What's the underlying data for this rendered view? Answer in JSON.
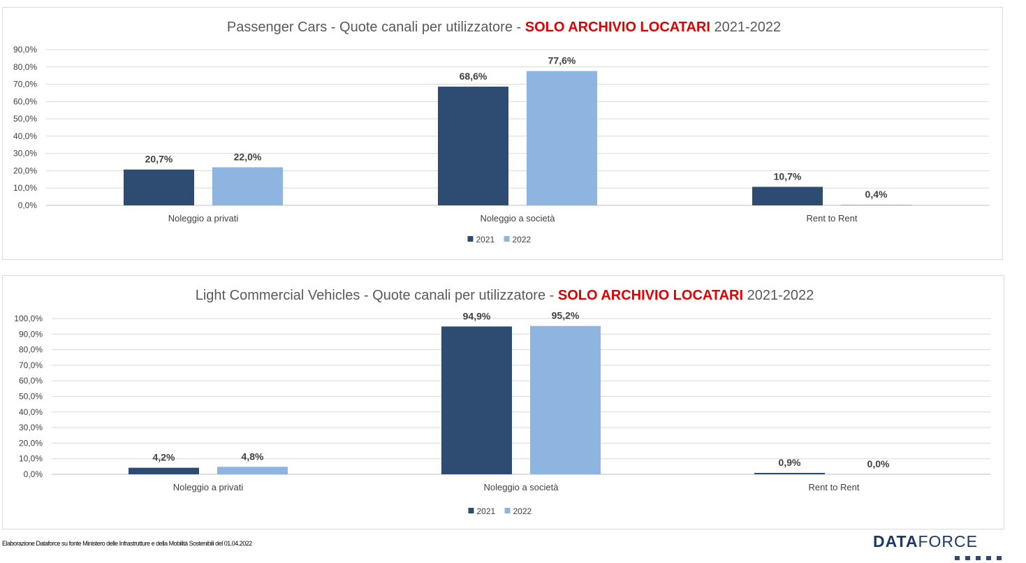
{
  "chart_data": [
    {
      "type": "bar",
      "title": "Passenger Cars - Quote canali per utilizzatore - ",
      "title_highlight": "SOLO ARCHIVIO LOCATARI",
      "title_suffix": " 2021-2022",
      "categories": [
        "Noleggio a privati",
        "Noleggio a società",
        "Rent to Rent"
      ],
      "series": [
        {
          "name": "2021",
          "values": [
            20.7,
            68.6,
            10.7
          ],
          "labels": [
            "20,7%",
            "68,6%",
            "10,7%"
          ],
          "color": "#2e4b72"
        },
        {
          "name": "2022",
          "values": [
            22.0,
            77.6,
            0.4
          ],
          "labels": [
            "22,0%",
            "77,6%",
            "0,4%"
          ],
          "color": "#8eb4e0"
        }
      ],
      "ylim": [
        0,
        90
      ],
      "yticks": [
        "0,0%",
        "10,0%",
        "20,0%",
        "30,0%",
        "40,0%",
        "50,0%",
        "60,0%",
        "70,0%",
        "80,0%",
        "90,0%"
      ],
      "grid": true,
      "legend": "bottom-center",
      "title_highlight_color": "#e00000"
    },
    {
      "type": "bar",
      "title": "Light Commercial  Vehicles - Quote canali per utilizzatore - ",
      "title_highlight": "SOLO ARCHIVIO LOCATARI",
      "title_suffix": " 2021-2022",
      "categories": [
        "Noleggio a privati",
        "Noleggio a società",
        "Rent to Rent"
      ],
      "series": [
        {
          "name": "2021",
          "values": [
            4.2,
            94.9,
            0.9
          ],
          "labels": [
            "4,2%",
            "94,9%",
            "0,9%"
          ],
          "color": "#2e4b72"
        },
        {
          "name": "2022",
          "values": [
            4.8,
            95.2,
            0.0
          ],
          "labels": [
            "4,8%",
            "95,2%",
            "0,0%"
          ],
          "color": "#8eb4e0"
        }
      ],
      "ylim": [
        0,
        100
      ],
      "yticks": [
        "0,0%",
        "10,0%",
        "20,0%",
        "30,0%",
        "40,0%",
        "50,0%",
        "60,0%",
        "70,0%",
        "80,0%",
        "90,0%",
        "100,0%"
      ],
      "grid": true,
      "legend": "bottom-center",
      "title_highlight_color": "#e00000"
    }
  ],
  "footer": {
    "source_note": "Elaborazione Dataforce su fonte Ministero delle Infrastrutture e della Mobilità Sostenibili del 01.04.2022"
  },
  "brand": {
    "name_bold": "DATA",
    "name_regular": "FORCE"
  }
}
